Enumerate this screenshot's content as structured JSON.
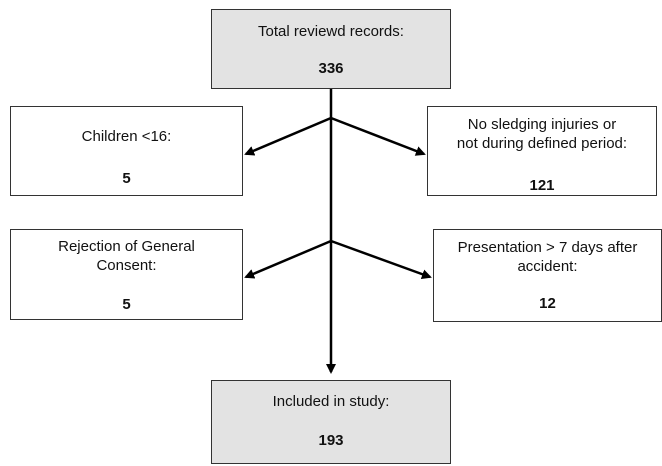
{
  "boxes": {
    "total": {
      "label": "Total reviewd records:",
      "count": "336"
    },
    "children": {
      "label": "Children <16:",
      "count": "5"
    },
    "no_sledging": {
      "label": "No sledging injuries or\nnot during defined period:",
      "count": "121"
    },
    "consent": {
      "label": "Rejection  of General\nConsent:",
      "count": "5"
    },
    "late": {
      "label": "Presentation > 7 days after\naccident:",
      "count": "12"
    },
    "included": {
      "label": "Included in study:",
      "count": "193"
    }
  },
  "colors": {
    "shaded_box": "#e3e3e3",
    "border": "#333333",
    "arrow": "#000000"
  }
}
